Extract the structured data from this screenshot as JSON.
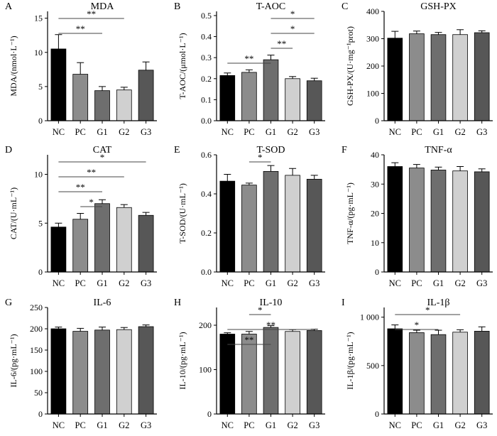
{
  "colors": [
    "#000000",
    "#8c8c8c",
    "#6e6e6e",
    "#d0d0d0",
    "#575757"
  ],
  "chart_data": [
    {
      "letter": "A",
      "type": "bar",
      "title": "MDA",
      "ylabel": "MDA/(nmol·L⁻¹)",
      "categories": [
        "NC",
        "PC",
        "G1",
        "G2",
        "G3"
      ],
      "values": [
        10.5,
        6.8,
        4.4,
        4.5,
        7.4
      ],
      "errors": [
        2.1,
        1.7,
        0.6,
        0.4,
        1.2
      ],
      "ylim": [
        0,
        16
      ],
      "yticks": [
        0,
        5,
        10,
        15
      ],
      "yticklabels": [
        "0",
        "5",
        "10",
        "15"
      ],
      "significance": [
        {
          "from": 0,
          "to": 3,
          "label": "**"
        },
        {
          "from": 0,
          "to": 2,
          "label": "**"
        }
      ]
    },
    {
      "letter": "B",
      "type": "bar",
      "title": "T-AOC",
      "ylabel": "T-AOC/(μmol·L⁻¹)",
      "categories": [
        "NC",
        "PC",
        "G1",
        "G2",
        "G3"
      ],
      "values": [
        0.215,
        0.23,
        0.29,
        0.2,
        0.19
      ],
      "errors": [
        0.012,
        0.012,
        0.022,
        0.01,
        0.012
      ],
      "ylim": [
        0,
        0.52
      ],
      "yticks": [
        0,
        0.1,
        0.2,
        0.3,
        0.4,
        0.5
      ],
      "yticklabels": [
        "0.0",
        "0.1",
        "0.2",
        "0.3",
        "0.4",
        "0.5"
      ],
      "significance": [
        {
          "from": 2,
          "to": 4,
          "label": "*"
        },
        {
          "from": 2,
          "to": 4,
          "label": "*"
        },
        {
          "from": 2,
          "to": 3,
          "label": "**"
        },
        {
          "from": 0,
          "to": 2,
          "label": "**"
        }
      ]
    },
    {
      "letter": "C",
      "type": "bar",
      "title": "GSH-PX",
      "ylabel": "GSH-PX/(U·mg⁻¹prot)",
      "categories": [
        "NC",
        "PC",
        "G1",
        "G2",
        "G3"
      ],
      "values": [
        302,
        318,
        315,
        315,
        322
      ],
      "errors": [
        25,
        10,
        8,
        18,
        7
      ],
      "ylim": [
        0,
        400
      ],
      "yticks": [
        0,
        100,
        200,
        300,
        400
      ],
      "yticklabels": [
        "0",
        "100",
        "200",
        "300",
        "400"
      ],
      "significance": []
    },
    {
      "letter": "D",
      "type": "bar",
      "title": "CAT",
      "ylabel": "CAT/(U·mL⁻¹)",
      "categories": [
        "NC",
        "PC",
        "G1",
        "G2",
        "G3"
      ],
      "values": [
        4.6,
        5.4,
        7.0,
        6.6,
        5.8
      ],
      "errors": [
        0.4,
        0.6,
        0.4,
        0.3,
        0.3
      ],
      "ylim": [
        0,
        12
      ],
      "yticks": [
        0,
        5,
        10
      ],
      "yticklabels": [
        "0",
        "5",
        "10"
      ],
      "significance": [
        {
          "from": 0,
          "to": 4,
          "label": "*"
        },
        {
          "from": 0,
          "to": 3,
          "label": "**"
        },
        {
          "from": 0,
          "to": 2,
          "label": "**"
        },
        {
          "from": 1,
          "to": 2,
          "label": "*"
        }
      ]
    },
    {
      "letter": "E",
      "type": "bar",
      "title": "T-SOD",
      "ylabel": "T-SOD/(U·mL⁻¹)",
      "categories": [
        "NC",
        "PC",
        "G1",
        "G2",
        "G3"
      ],
      "values": [
        0.465,
        0.445,
        0.515,
        0.495,
        0.475
      ],
      "errors": [
        0.035,
        0.01,
        0.03,
        0.035,
        0.02
      ],
      "ylim": [
        0,
        0.6
      ],
      "yticks": [
        0,
        0.2,
        0.4,
        0.6
      ],
      "yticklabels": [
        "0.0",
        "0.2",
        "0.4",
        "0.6"
      ],
      "significance": [
        {
          "from": 1,
          "to": 2,
          "label": "*"
        }
      ]
    },
    {
      "letter": "F",
      "type": "bar",
      "title": "TNF-α",
      "ylabel": "TNF-α/(pg·mL⁻¹)",
      "categories": [
        "NC",
        "PC",
        "G1",
        "G2",
        "G3"
      ],
      "values": [
        36,
        35.5,
        34.8,
        34.5,
        34.2
      ],
      "errors": [
        1.3,
        1.2,
        1.0,
        1.5,
        1.0
      ],
      "ylim": [
        0,
        40
      ],
      "yticks": [
        0,
        10,
        20,
        30,
        40
      ],
      "yticklabels": [
        "0",
        "10",
        "20",
        "30",
        "40"
      ],
      "significance": []
    },
    {
      "letter": "G",
      "type": "bar",
      "title": "IL-6",
      "ylabel": "IL-6/(pg·mL⁻¹)",
      "categories": [
        "NC",
        "PC",
        "G1",
        "G2",
        "G3"
      ],
      "values": [
        200,
        194,
        197,
        198,
        205
      ],
      "errors": [
        4,
        7,
        7,
        5,
        4
      ],
      "ylim": [
        0,
        250
      ],
      "yticks": [
        0,
        50,
        100,
        150,
        200,
        250
      ],
      "yticklabels": [
        "0",
        "50",
        "100",
        "150",
        "200",
        "250"
      ],
      "significance": []
    },
    {
      "letter": "H",
      "type": "bar",
      "title": "IL-10",
      "ylabel": "IL-10/(pg·mL⁻¹)",
      "categories": [
        "NC",
        "PC",
        "G1",
        "G2",
        "G3"
      ],
      "values": [
        180,
        180,
        195,
        186,
        188
      ],
      "errors": [
        3,
        6,
        4,
        4,
        3
      ],
      "ylim": [
        0,
        240
      ],
      "yticks": [
        0,
        100,
        200
      ],
      "yticklabels": [
        "0",
        "100",
        "200"
      ],
      "significance": [
        {
          "from": 1,
          "to": 2,
          "label": "*"
        },
        {
          "from": 0,
          "to": 4,
          "label": "**"
        },
        {
          "from": 0,
          "to": 2,
          "label": "**"
        }
      ]
    },
    {
      "letter": "I",
      "type": "bar",
      "title": "IL-1β",
      "ylabel": "IL-1β/(pg·mL⁻¹)",
      "categories": [
        "NC",
        "PC",
        "G1",
        "G2",
        "G3"
      ],
      "values": [
        880,
        840,
        820,
        845,
        855
      ],
      "errors": [
        40,
        25,
        45,
        25,
        45
      ],
      "ylim": [
        0,
        1100
      ],
      "yticks": [
        0,
        500,
        1000
      ],
      "yticklabels": [
        "0",
        "500",
        "1 000"
      ],
      "significance": [
        {
          "from": 0,
          "to": 3,
          "label": "*"
        },
        {
          "from": 0,
          "to": 2,
          "label": "*"
        }
      ]
    }
  ]
}
